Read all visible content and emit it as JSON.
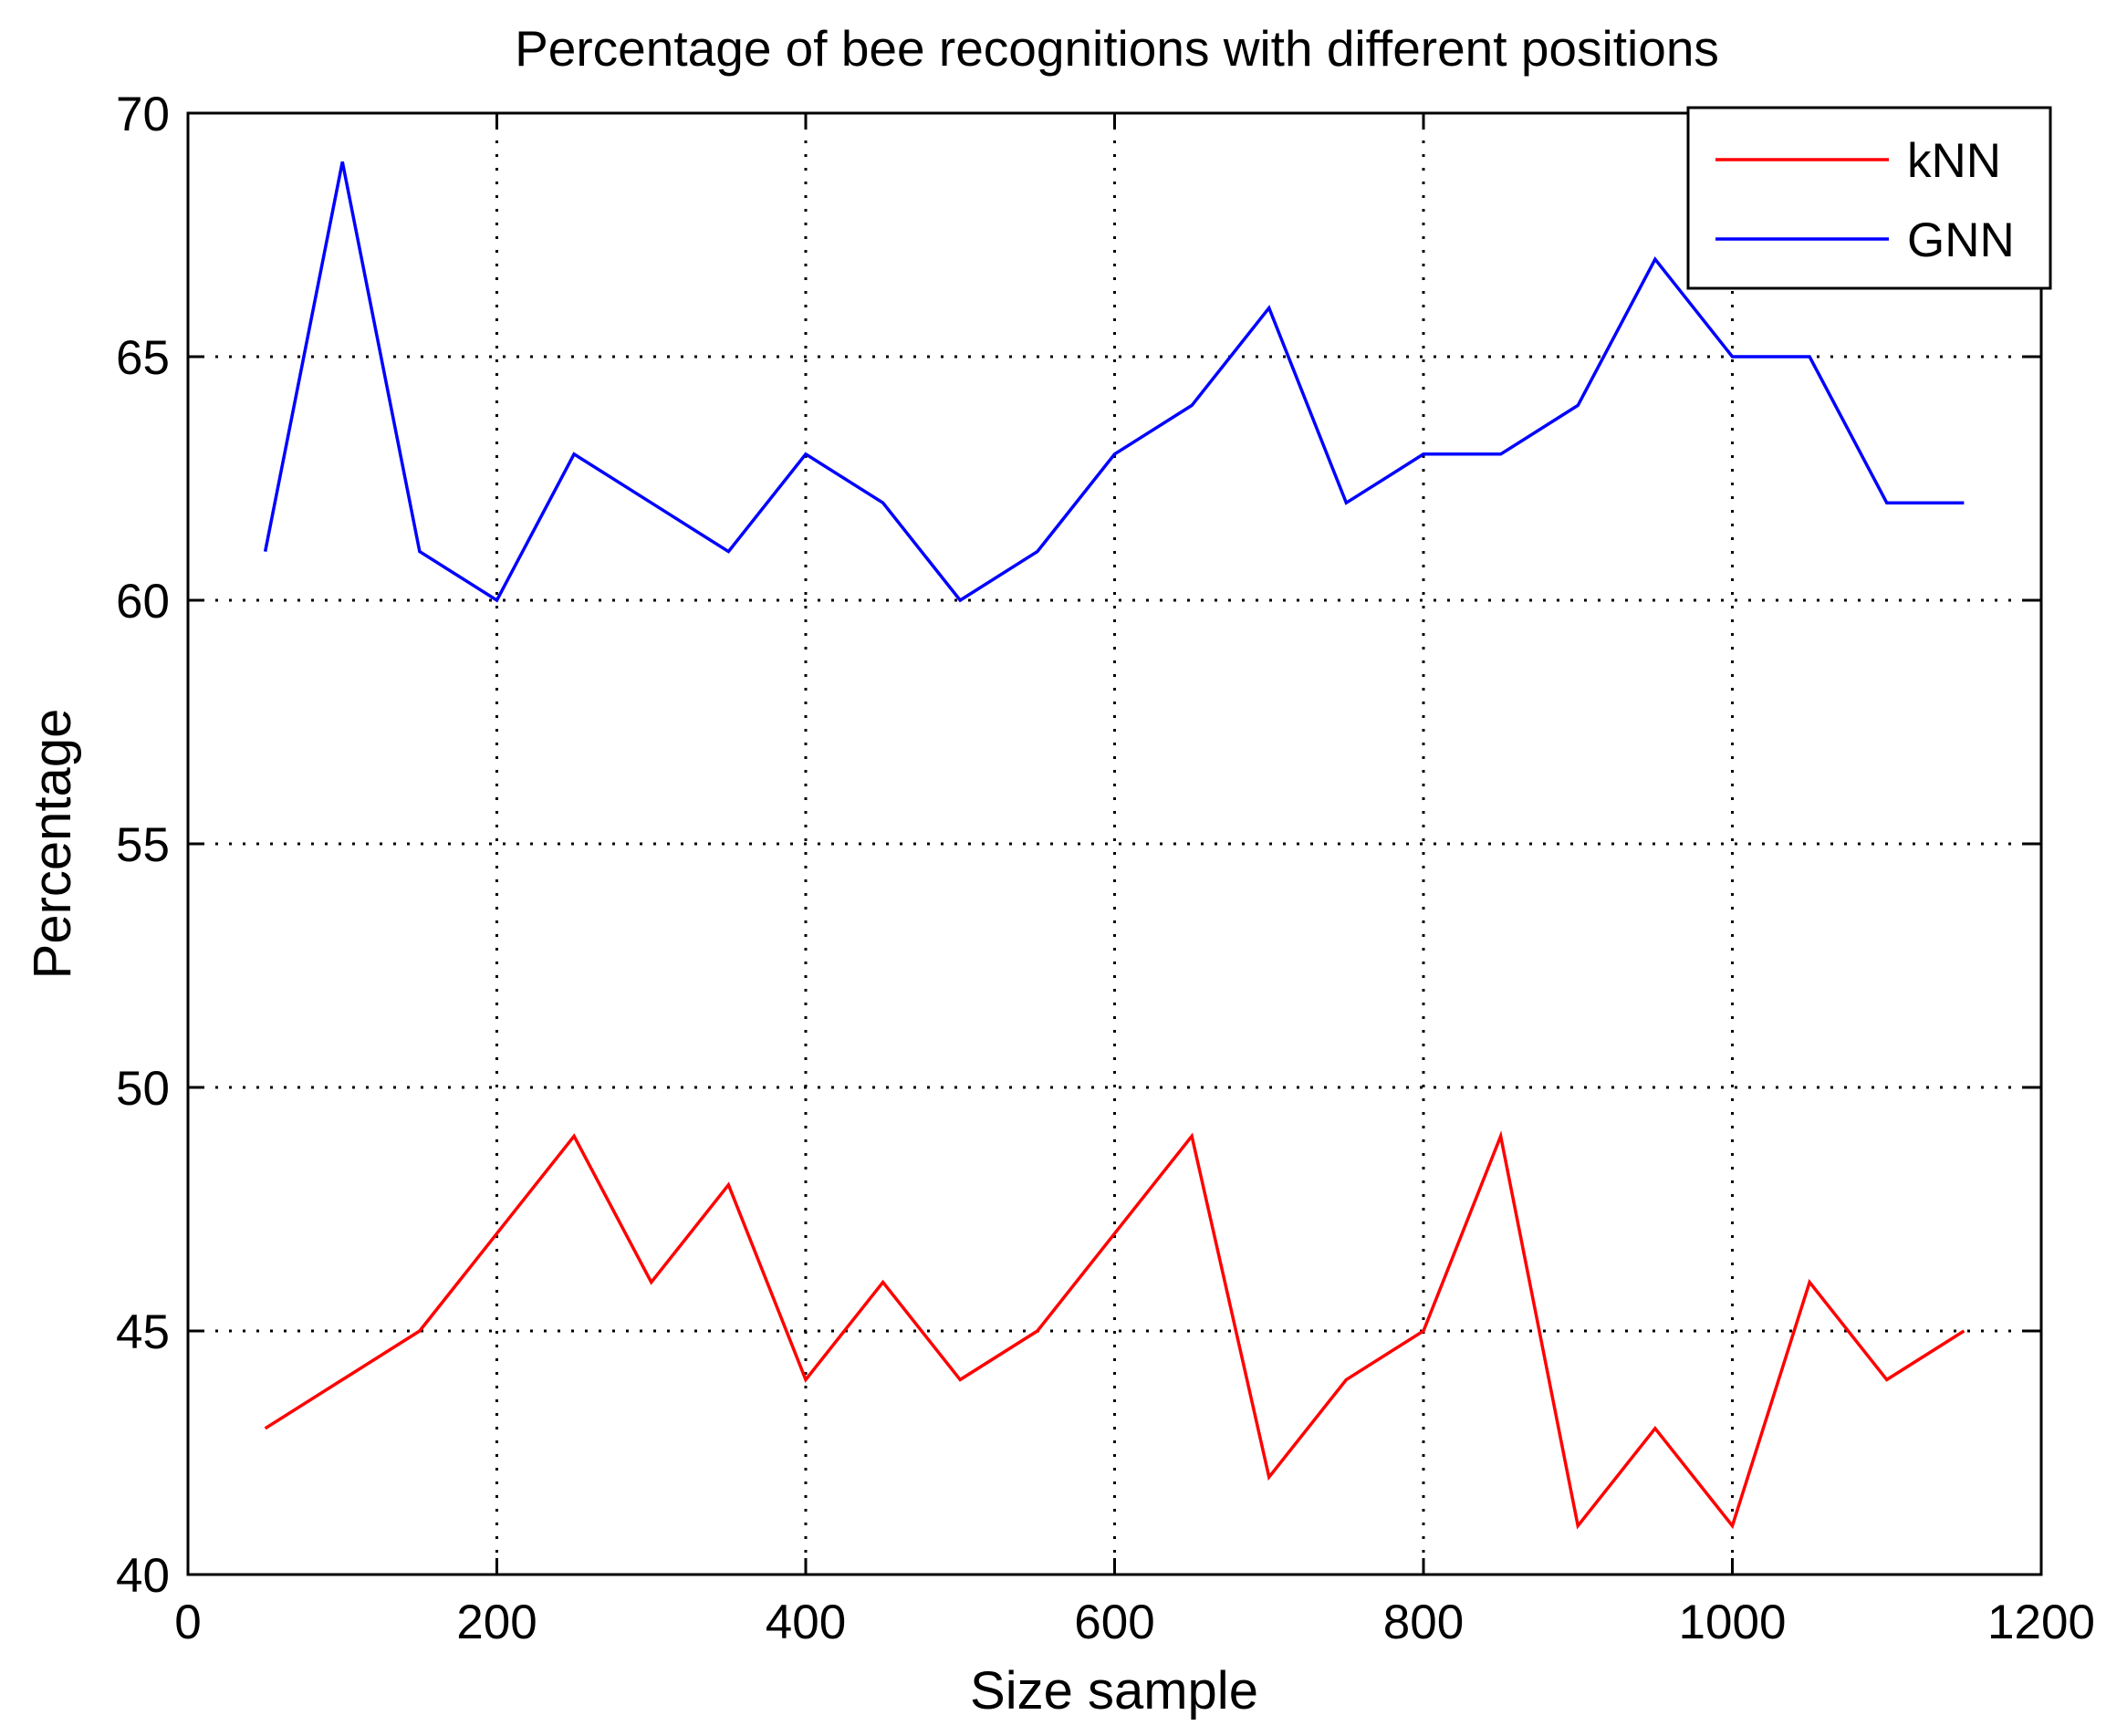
{
  "chart_data": {
    "type": "line",
    "title": "Percentage of bee recognitions with different positions",
    "xlabel": "Size sample",
    "ylabel": "Percentage",
    "xlim": [
      0,
      1200
    ],
    "ylim": [
      40,
      70
    ],
    "xticks": [
      0,
      200,
      400,
      600,
      800,
      1000,
      1200
    ],
    "yticks": [
      40,
      45,
      50,
      55,
      60,
      65,
      70
    ],
    "grid": true,
    "legend_position": "top-right",
    "x": [
      50,
      100,
      150,
      200,
      250,
      300,
      350,
      400,
      450,
      500,
      550,
      600,
      650,
      700,
      750,
      800,
      850,
      900,
      950,
      1000,
      1050,
      1100,
      1150
    ],
    "series": [
      {
        "name": "kNN",
        "color": "#ff0000",
        "values": [
          43,
          44,
          45,
          47,
          49,
          46,
          48,
          44,
          46,
          44,
          45,
          47,
          49,
          42,
          44,
          45,
          49,
          41,
          43,
          41,
          46,
          44,
          45
        ]
      },
      {
        "name": "GNN",
        "color": "#0000ff",
        "values": [
          61,
          69,
          61,
          60,
          63,
          62,
          61,
          63,
          62,
          60,
          61,
          63,
          64,
          66,
          62,
          63,
          63,
          64,
          67,
          65,
          65,
          62,
          62
        ]
      }
    ]
  }
}
